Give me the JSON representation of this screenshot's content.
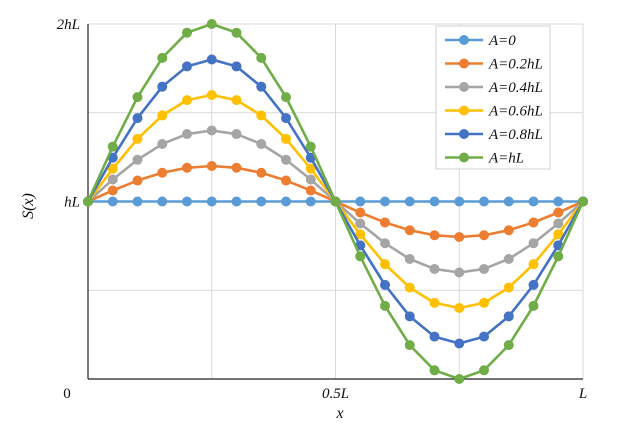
{
  "chart_data": {
    "type": "line",
    "title": "",
    "xlabel": "x",
    "ylabel": "S(x)",
    "x_ticks": [
      "0",
      "0.5L",
      "L"
    ],
    "y_ticks": [
      "hL",
      "2hL"
    ],
    "xlim": [
      0,
      1
    ],
    "ylim": [
      0,
      2
    ],
    "grid": true,
    "legend_position": "top-right",
    "x": [
      0,
      0.05,
      0.1,
      0.15,
      0.2,
      0.25,
      0.3,
      0.35,
      0.4,
      0.45,
      0.5,
      0.55,
      0.6,
      0.65,
      0.7,
      0.75,
      0.8,
      0.85,
      0.9,
      0.95,
      1
    ],
    "series": [
      {
        "name": "A=0",
        "color": "#5B9BD5",
        "values": [
          1,
          1,
          1,
          1,
          1,
          1,
          1,
          1,
          1,
          1,
          1,
          1,
          1,
          1,
          1,
          1,
          1,
          1,
          1,
          1,
          1
        ]
      },
      {
        "name": "A=0.2hL",
        "color": "#ED7D31",
        "values": [
          1,
          1.062,
          1.118,
          1.162,
          1.19,
          1.2,
          1.19,
          1.162,
          1.118,
          1.062,
          1,
          0.938,
          0.882,
          0.838,
          0.81,
          0.8,
          0.81,
          0.838,
          0.882,
          0.938,
          1
        ]
      },
      {
        "name": "A=0.4hL",
        "color": "#A5A5A5",
        "values": [
          1,
          1.124,
          1.235,
          1.324,
          1.38,
          1.4,
          1.38,
          1.324,
          1.235,
          1.124,
          1,
          0.876,
          0.765,
          0.676,
          0.62,
          0.6,
          0.62,
          0.676,
          0.765,
          0.876,
          1
        ]
      },
      {
        "name": "A=0.6hL",
        "color": "#FFC000",
        "values": [
          1,
          1.185,
          1.353,
          1.485,
          1.571,
          1.6,
          1.571,
          1.485,
          1.353,
          1.185,
          1,
          0.815,
          0.647,
          0.515,
          0.429,
          0.4,
          0.429,
          0.515,
          0.647,
          0.815,
          1
        ]
      },
      {
        "name": "A=0.8hL",
        "color": "#4472C4",
        "values": [
          1,
          1.247,
          1.47,
          1.647,
          1.761,
          1.8,
          1.761,
          1.647,
          1.47,
          1.247,
          1,
          0.753,
          0.53,
          0.353,
          0.239,
          0.2,
          0.239,
          0.353,
          0.53,
          0.753,
          1
        ]
      },
      {
        "name": "A=hL",
        "color": "#70AD47",
        "values": [
          1,
          1.309,
          1.588,
          1.809,
          1.951,
          2,
          1.951,
          1.809,
          1.588,
          1.309,
          1,
          0.691,
          0.412,
          0.191,
          0.049,
          0,
          0.049,
          0.191,
          0.412,
          0.691,
          1
        ]
      }
    ]
  }
}
